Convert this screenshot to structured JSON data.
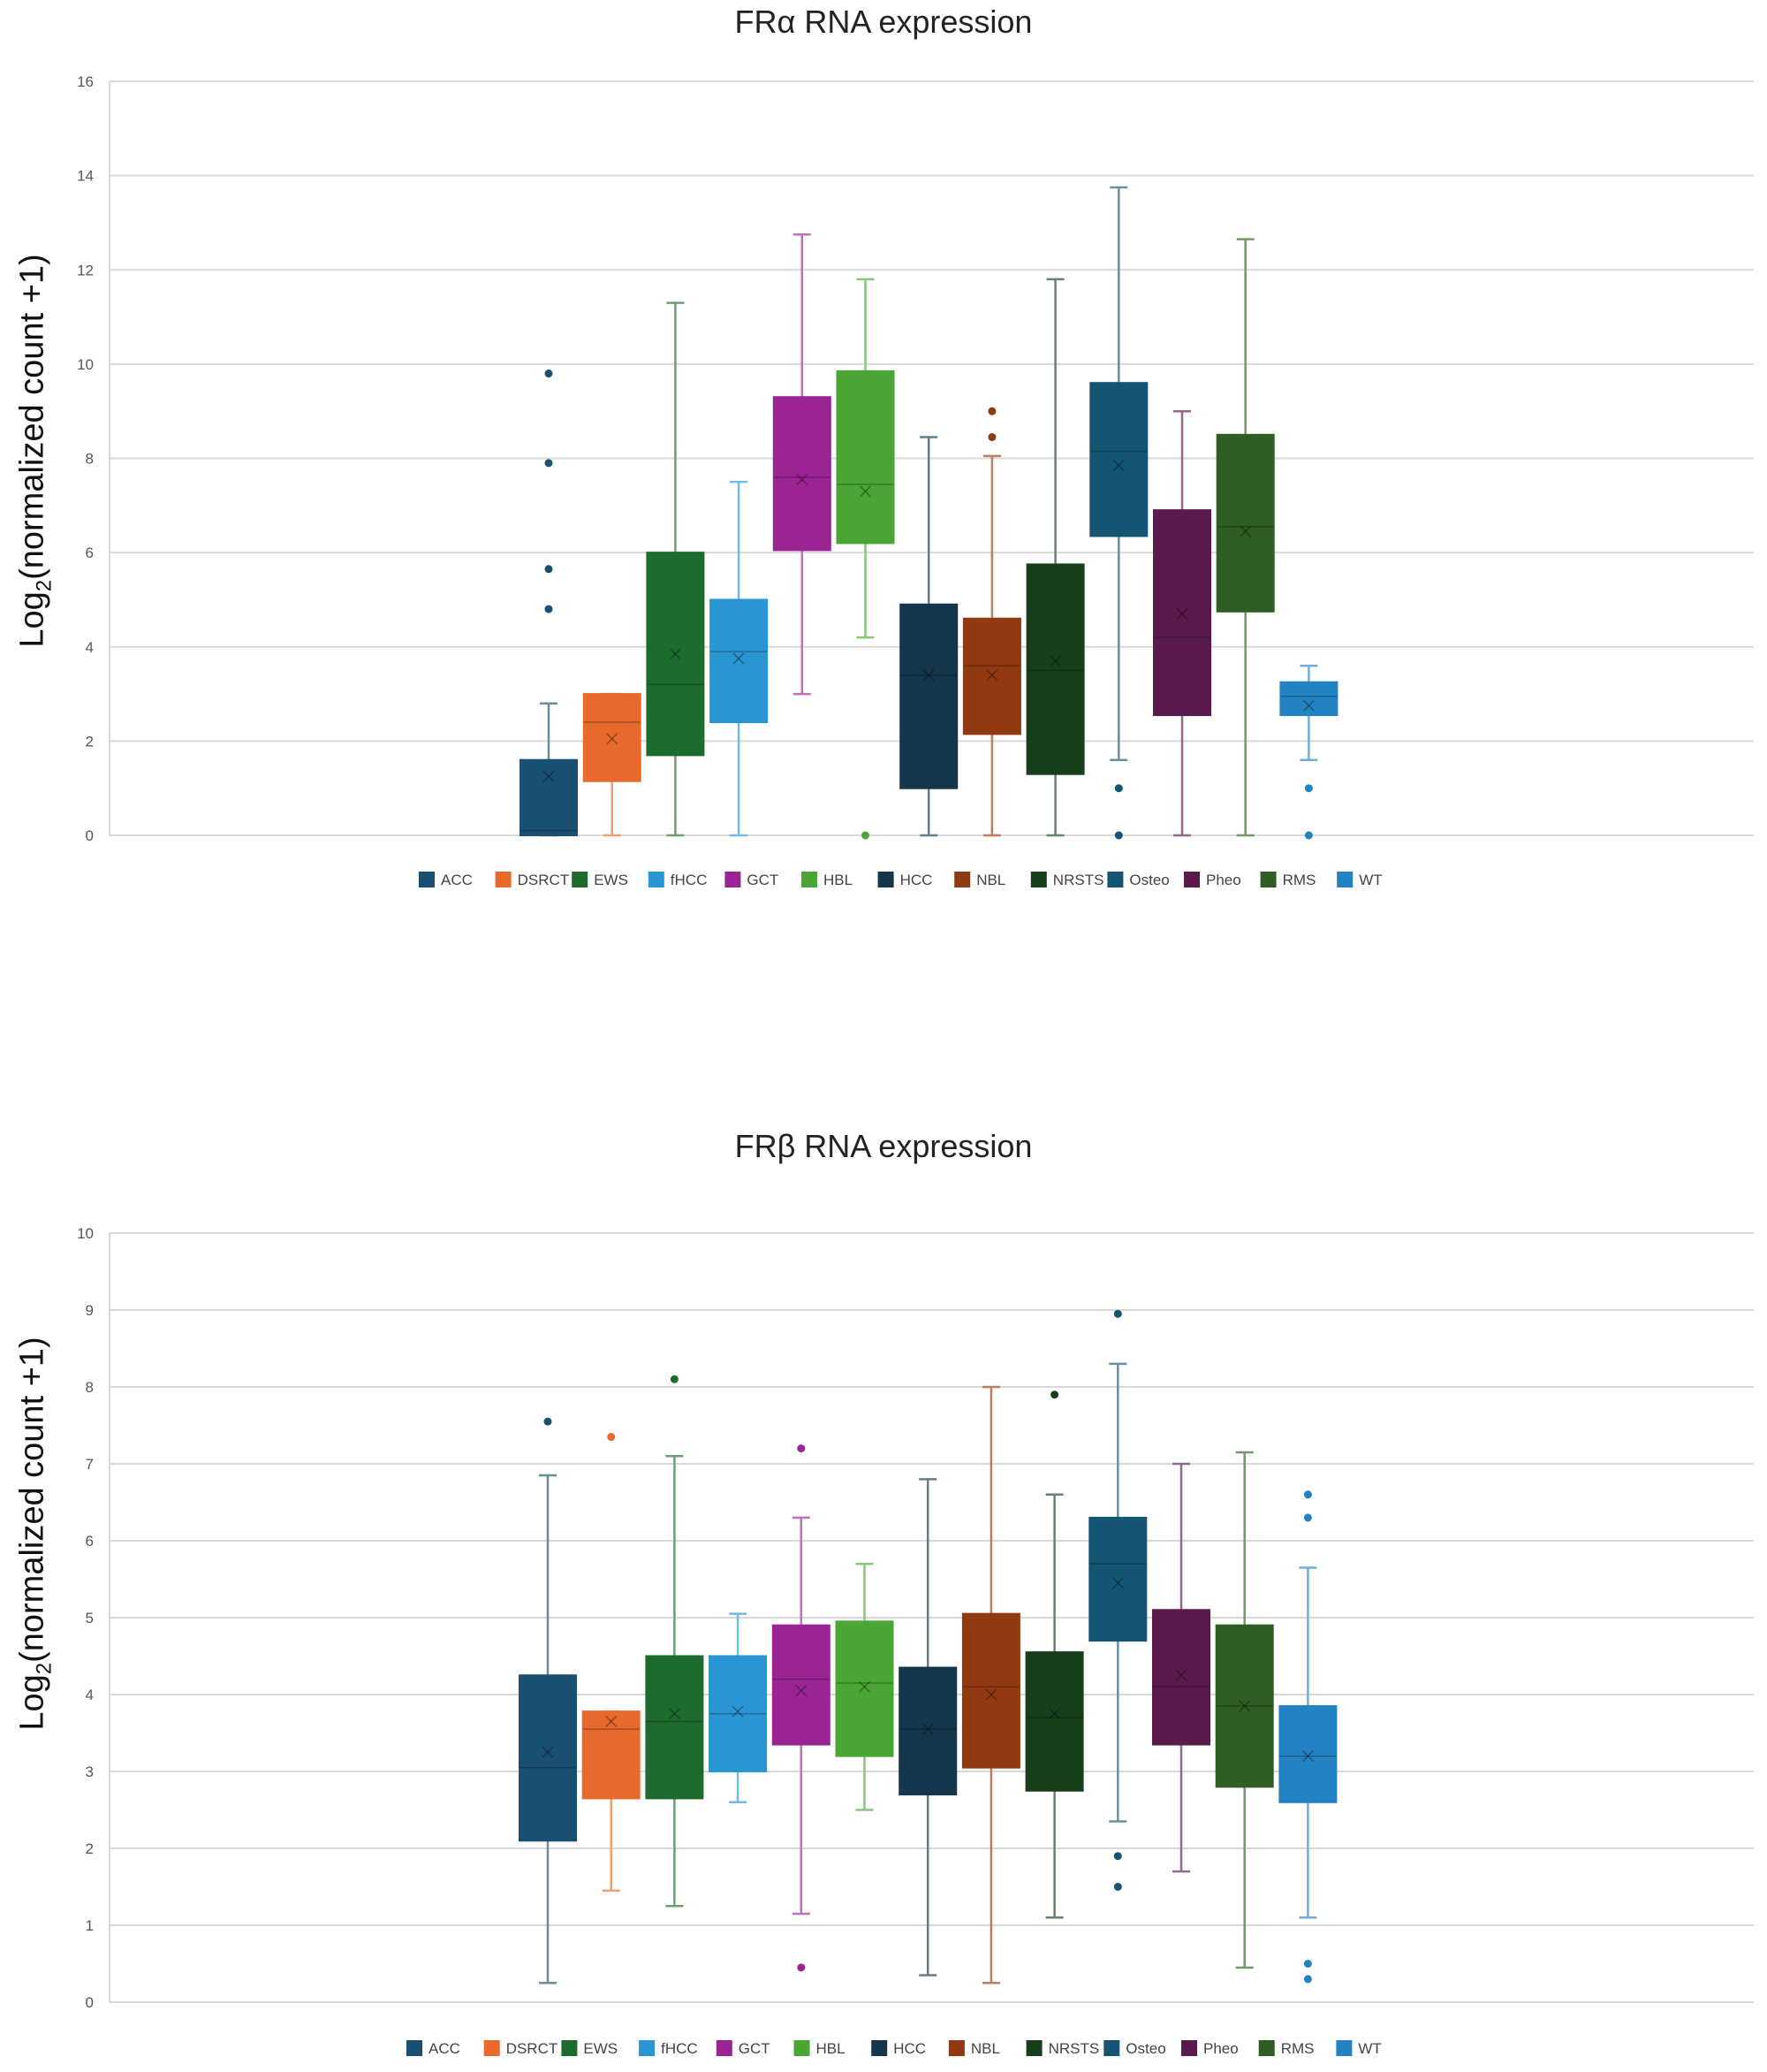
{
  "chart_data": [
    {
      "type": "box",
      "title": "FRα RNA expression",
      "ylabel": {
        "prefix": "Log",
        "sub": "2",
        "suffix": "(normalized count +1)"
      },
      "ylim": [
        0,
        16
      ],
      "yticks": [
        0,
        2,
        4,
        6,
        8,
        10,
        12,
        14,
        16
      ],
      "grid": true,
      "legend_position": "bottom",
      "categories": [
        "ACC",
        "DSRCT",
        "EWS",
        "fHCC",
        "GCT",
        "HBL",
        "HCC",
        "NBL",
        "NRSTS",
        "Osteo",
        "Pheo",
        "RMS",
        "WT"
      ],
      "colors": [
        "#1b4f72",
        "#e8692c",
        "#1e6b2e",
        "#2996d3",
        "#9a2493",
        "#4aa634",
        "#14364a",
        "#913a12",
        "#173f1c",
        "#135572",
        "#5a1a4c",
        "#2e5e22",
        "#2383c2"
      ],
      "series": [
        {
          "category": "ACC",
          "min": 0,
          "q1": 0,
          "median": 0.1,
          "q3": 1.6,
          "max": 2.8,
          "mean": 1.25,
          "outliers": [
            4.8,
            5.65,
            7.9,
            9.8
          ]
        },
        {
          "category": "DSRCT",
          "min": 0,
          "q1": 1.15,
          "median": 2.4,
          "q3": 3.0,
          "max": 3.0,
          "mean": 2.05,
          "outliers": []
        },
        {
          "category": "EWS",
          "min": 0,
          "q1": 1.7,
          "median": 3.2,
          "q3": 6.0,
          "max": 11.3,
          "mean": 3.85,
          "outliers": []
        },
        {
          "category": "fHCC",
          "min": 0,
          "q1": 2.4,
          "median": 3.9,
          "q3": 5.0,
          "max": 7.5,
          "mean": 3.75,
          "outliers": []
        },
        {
          "category": "GCT",
          "min": 3.0,
          "q1": 6.05,
          "median": 7.6,
          "q3": 9.3,
          "max": 12.75,
          "mean": 7.55,
          "outliers": []
        },
        {
          "category": "HBL",
          "min": 4.2,
          "q1": 6.2,
          "median": 7.45,
          "q3": 9.85,
          "max": 11.8,
          "mean": 7.3,
          "outliers": [
            0
          ]
        },
        {
          "category": "HCC",
          "min": 0,
          "q1": 1.0,
          "median": 3.4,
          "q3": 4.9,
          "max": 8.45,
          "mean": 3.4,
          "outliers": []
        },
        {
          "category": "NBL",
          "min": 0,
          "q1": 2.15,
          "median": 3.6,
          "q3": 4.6,
          "max": 8.05,
          "mean": 3.4,
          "outliers": [
            8.45,
            9.0
          ]
        },
        {
          "category": "NRSTS",
          "min": 0,
          "q1": 1.3,
          "median": 3.5,
          "q3": 5.75,
          "max": 11.8,
          "mean": 3.7,
          "outliers": []
        },
        {
          "category": "Osteo",
          "min": 1.6,
          "q1": 6.35,
          "median": 8.15,
          "q3": 9.6,
          "max": 13.75,
          "mean": 7.85,
          "outliers": [
            0,
            1.0
          ]
        },
        {
          "category": "Pheo",
          "min": 0,
          "q1": 2.55,
          "median": 4.2,
          "q3": 6.9,
          "max": 9.0,
          "mean": 4.7,
          "outliers": []
        },
        {
          "category": "RMS",
          "min": 0,
          "q1": 4.75,
          "median": 6.55,
          "q3": 8.5,
          "max": 12.65,
          "mean": 6.45,
          "outliers": []
        },
        {
          "category": "WT",
          "min": 1.6,
          "q1": 2.55,
          "median": 2.95,
          "q3": 3.25,
          "max": 3.6,
          "mean": 2.75,
          "outliers": [
            0,
            1.0
          ]
        }
      ]
    },
    {
      "type": "box",
      "title": "FRβ RNA expression",
      "ylabel": {
        "prefix": "Log",
        "sub": "2",
        "suffix": "(normalized count +1)"
      },
      "ylim": [
        0,
        10
      ],
      "yticks": [
        0,
        1,
        2,
        3,
        4,
        5,
        6,
        7,
        8,
        9,
        10
      ],
      "grid": true,
      "legend_position": "bottom",
      "categories": [
        "ACC",
        "DSRCT",
        "EWS",
        "fHCC",
        "GCT",
        "HBL",
        "HCC",
        "NBL",
        "NRSTS",
        "Osteo",
        "Pheo",
        "RMS",
        "WT"
      ],
      "colors": [
        "#1b4f72",
        "#e8692c",
        "#1e6b2e",
        "#2996d3",
        "#9a2493",
        "#4aa634",
        "#14364a",
        "#913a12",
        "#173f1c",
        "#135572",
        "#5a1a4c",
        "#2e5e22",
        "#2383c2"
      ],
      "series": [
        {
          "category": "ACC",
          "min": 0.25,
          "q1": 2.1,
          "median": 3.05,
          "q3": 4.25,
          "max": 6.85,
          "mean": 3.25,
          "outliers": [
            7.55
          ]
        },
        {
          "category": "DSRCT",
          "min": 1.45,
          "q1": 2.65,
          "median": 3.55,
          "q3": 3.78,
          "max": 3.78,
          "mean": 3.65,
          "outliers": [
            7.35
          ]
        },
        {
          "category": "EWS",
          "min": 1.25,
          "q1": 2.65,
          "median": 3.65,
          "q3": 4.5,
          "max": 7.1,
          "mean": 3.75,
          "outliers": [
            8.1
          ]
        },
        {
          "category": "fHCC",
          "min": 2.6,
          "q1": 3.0,
          "median": 3.75,
          "q3": 4.5,
          "max": 5.05,
          "mean": 3.78,
          "outliers": []
        },
        {
          "category": "GCT",
          "min": 1.15,
          "q1": 3.35,
          "median": 4.2,
          "q3": 4.9,
          "max": 6.3,
          "mean": 4.05,
          "outliers": [
            0.45,
            7.2
          ]
        },
        {
          "category": "HBL",
          "min": 2.5,
          "q1": 3.2,
          "median": 4.15,
          "q3": 4.95,
          "max": 5.7,
          "mean": 4.1,
          "outliers": []
        },
        {
          "category": "HCC",
          "min": 0.35,
          "q1": 2.7,
          "median": 3.55,
          "q3": 4.35,
          "max": 6.8,
          "mean": 3.55,
          "outliers": []
        },
        {
          "category": "NBL",
          "min": 0.25,
          "q1": 3.05,
          "median": 4.1,
          "q3": 5.05,
          "max": 8.0,
          "mean": 4.0,
          "outliers": []
        },
        {
          "category": "NRSTS",
          "min": 1.1,
          "q1": 2.75,
          "median": 3.7,
          "q3": 4.55,
          "max": 6.6,
          "mean": 3.75,
          "outliers": [
            7.9
          ]
        },
        {
          "category": "Osteo",
          "min": 2.35,
          "q1": 4.7,
          "median": 5.7,
          "q3": 6.3,
          "max": 8.3,
          "mean": 5.45,
          "outliers": [
            1.5,
            1.9,
            8.95
          ]
        },
        {
          "category": "Pheo",
          "min": 1.7,
          "q1": 3.35,
          "median": 4.1,
          "q3": 5.1,
          "max": 7.0,
          "mean": 4.25,
          "outliers": []
        },
        {
          "category": "RMS",
          "min": 0.45,
          "q1": 2.8,
          "median": 3.85,
          "q3": 4.9,
          "max": 7.15,
          "mean": 3.85,
          "outliers": []
        },
        {
          "category": "WT",
          "min": 1.1,
          "q1": 2.6,
          "median": 3.2,
          "q3": 3.85,
          "max": 5.65,
          "mean": 3.2,
          "outliers": [
            0.3,
            0.5,
            6.3,
            6.6
          ]
        }
      ]
    }
  ]
}
